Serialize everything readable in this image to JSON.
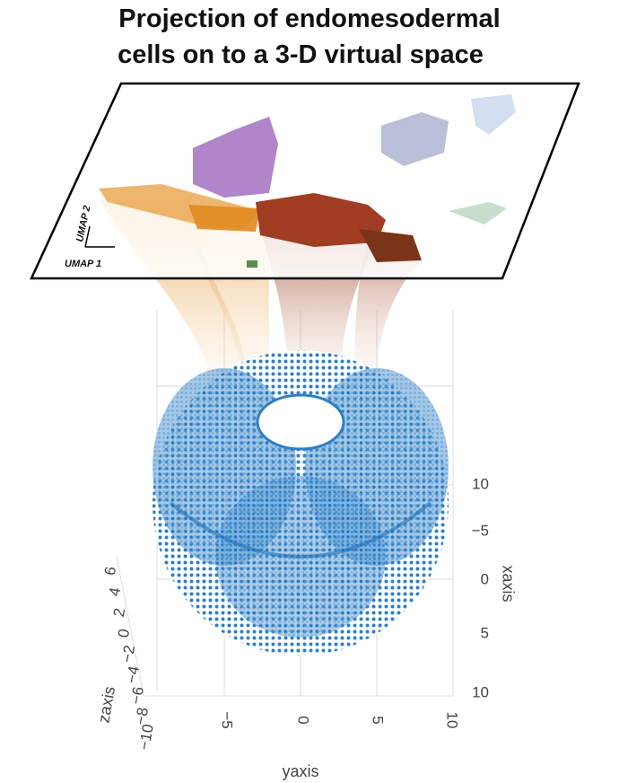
{
  "title": [
    "Projection of endomesodermal",
    "cells on to a 3-D virtual space"
  ],
  "umap_axes": [
    "UMAP 1",
    "UMAP 2"
  ],
  "axes": {
    "x": {
      "title": "xaxis",
      "ticks": [
        "10",
        "−5",
        "0",
        "5",
        "10"
      ]
    },
    "y": {
      "title": "yaxis",
      "ticks": [
        "−5",
        "0",
        "5",
        "10"
      ]
    },
    "z": {
      "title": "zaxis",
      "ticks": [
        "6",
        "4",
        "2",
        "0",
        "−2",
        "−4",
        "−6",
        "−8",
        "−10"
      ]
    }
  }
}
